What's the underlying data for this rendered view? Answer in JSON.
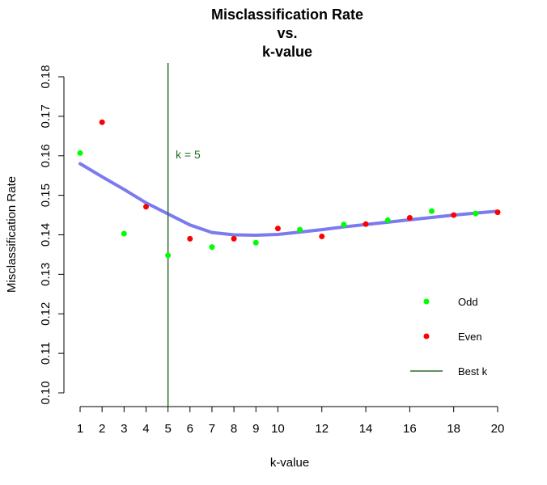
{
  "chart_data": {
    "type": "scatter",
    "title_lines": [
      "Misclassification Rate",
      "vs.",
      "k-value"
    ],
    "xlabel": "k-value",
    "ylabel": "Misclassification Rate",
    "xlim": [
      1,
      20
    ],
    "ylim": [
      0.1,
      0.18
    ],
    "x_ticks": [
      1,
      2,
      3,
      4,
      5,
      6,
      7,
      8,
      9,
      10,
      12,
      14,
      16,
      18,
      20
    ],
    "y_ticks": [
      0.1,
      0.11,
      0.12,
      0.13,
      0.14,
      0.15,
      0.16,
      0.17,
      0.18
    ],
    "y_tick_labels": [
      "0.10",
      "0.11",
      "0.12",
      "0.13",
      "0.14",
      "0.15",
      "0.16",
      "0.17",
      "0.18"
    ],
    "grid": false,
    "series": [
      {
        "name": "Odd",
        "color": "#00ff00",
        "x": [
          1,
          3,
          5,
          7,
          9,
          11,
          13,
          15,
          17,
          19
        ],
        "y": [
          0.1607,
          0.1403,
          0.1348,
          0.1369,
          0.138,
          0.1413,
          0.1426,
          0.1437,
          0.146,
          0.1454
        ]
      },
      {
        "name": "Even",
        "color": "#ff0000",
        "x": [
          2,
          4,
          6,
          8,
          10,
          12,
          14,
          16,
          18,
          20
        ],
        "y": [
          0.1685,
          0.1471,
          0.139,
          0.139,
          0.1416,
          0.1396,
          0.1427,
          0.1443,
          0.145,
          0.1457
        ]
      }
    ],
    "smooth_line": {
      "color": "#7b7bf0",
      "x": [
        1,
        2,
        3,
        4,
        5,
        6,
        7,
        8,
        9,
        10,
        11,
        12,
        13,
        14,
        15,
        16,
        17,
        18,
        19,
        20
      ],
      "y": [
        0.158,
        0.1547,
        0.1515,
        0.1481,
        0.1453,
        0.1425,
        0.1406,
        0.14,
        0.1399,
        0.1401,
        0.1407,
        0.1413,
        0.142,
        0.1426,
        0.1432,
        0.1438,
        0.1444,
        0.145,
        0.1455,
        0.146
      ]
    },
    "best_k": {
      "name": "Best k",
      "value": 5,
      "color": "#2d6b2d",
      "annotation": "k = 5",
      "annotation_color": "#1f6b1f"
    },
    "legend": {
      "placement": "bottom-right",
      "entries": [
        "Odd",
        "Even",
        "Best k"
      ]
    }
  }
}
